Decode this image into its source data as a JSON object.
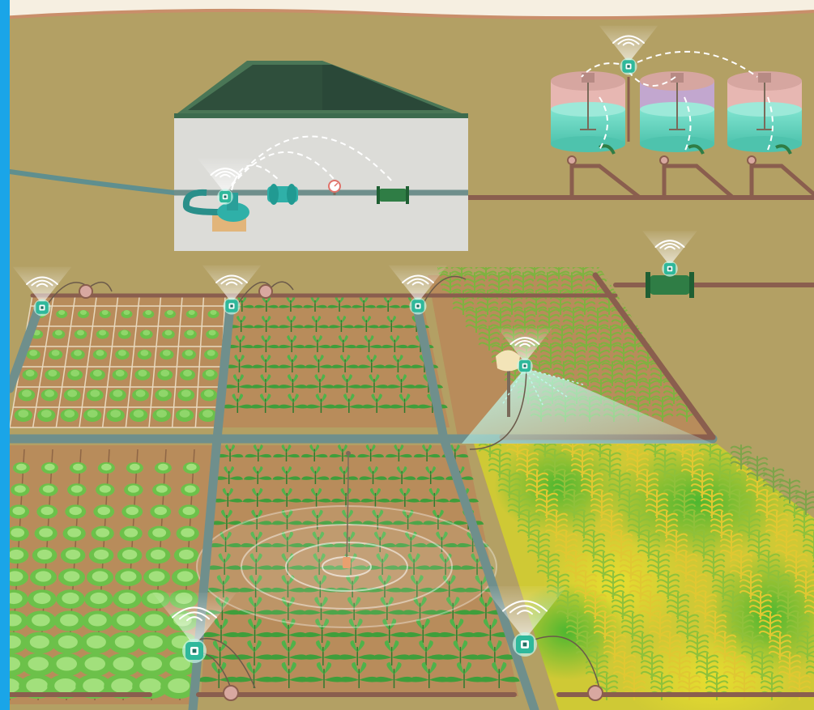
{
  "scene": {
    "kind": "smart-farm-iot-illustration",
    "colors": {
      "frame_blue": "#1aa5e8",
      "sky_cream": "#f6efe1",
      "ground": "#b3a064",
      "soil": "#b88c5b",
      "soil_dark": "#8e6646",
      "pipe_brown": "#8a5e4e",
      "pipe_teal": "#6f8f8c",
      "sensor_teal": "#2fb89b",
      "signal_white": "#ffffff",
      "house_wall": "#dcdcd8",
      "house_roof": "#3d6b4e",
      "tank_pink": "#e7b7b2",
      "tank_purple": "#c2a7cf",
      "water": "#6fd6c3",
      "plant_green": "#3f9e3b",
      "cabbage_green": "#6cc14a",
      "corn_green": "#7fb240",
      "heat_yellow": "#d9d834",
      "heat_green": "#4cbb2f",
      "valve_green": "#2f7d45"
    },
    "icons": [
      "wireless-sensor-node-icon",
      "valve-icon",
      "pump-icon",
      "pressure-gauge-icon",
      "flow-meter-icon",
      "storage-tank-icon",
      "soil-moisture-probe-icon",
      "sprinkler-icon",
      "cabbage-icon",
      "leafy-plant-icon",
      "corn-plant-icon"
    ]
  }
}
